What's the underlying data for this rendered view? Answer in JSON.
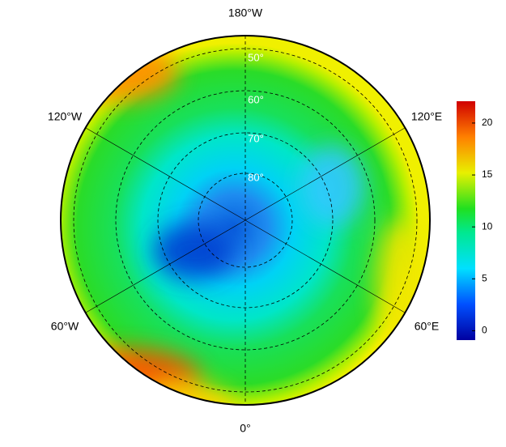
{
  "map": {
    "longitude_labels": [
      "180°W",
      "120°W",
      "120°E",
      "60°W",
      "60°E",
      "0°"
    ],
    "latitude_labels": [
      "50°",
      "60°",
      "70°",
      "80°"
    ],
    "colorbar": {
      "range": [
        -0.9,
        22.1
      ],
      "ticks": [
        0,
        5,
        10,
        15,
        20
      ]
    }
  }
}
